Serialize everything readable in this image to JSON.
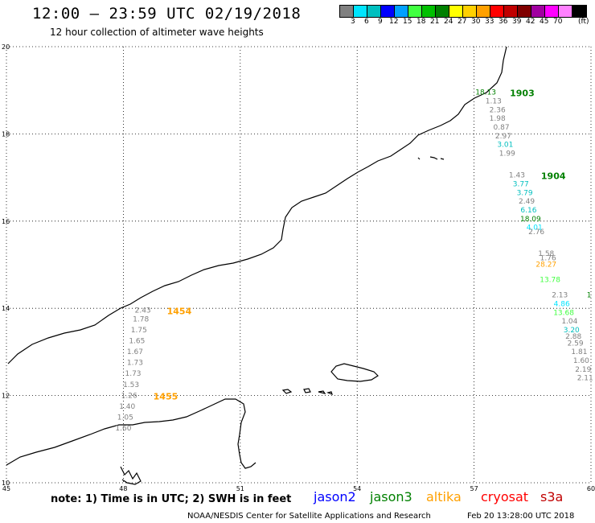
{
  "header": {
    "title": "12:00 – 23:59 UTC 02/19/2018",
    "subtitle": "12 hour collection of altimeter wave heights"
  },
  "colorbar": {
    "colors": [
      "#808080",
      "#00e5ff",
      "#00bfbf",
      "#0000ff",
      "#00a0ff",
      "#40ff40",
      "#00c000",
      "#008000",
      "#ffff00",
      "#ffd000",
      "#ffa000",
      "#ff0000",
      "#c00000",
      "#800000",
      "#a000a0",
      "#ff00ff",
      "#ff80ff",
      "#000000"
    ],
    "labels": [
      "3",
      "6",
      "9",
      "12",
      "15",
      "18",
      "21",
      "24",
      "27",
      "30",
      "33",
      "36",
      "39",
      "42",
      "45",
      "70"
    ],
    "unit": "(ft)"
  },
  "map": {
    "lon_ticks": [
      "45",
      "48",
      "51",
      "54",
      "57",
      "60"
    ],
    "lat_ticks": [
      "10",
      "12",
      "14",
      "16",
      "18",
      "20"
    ],
    "grid": true
  },
  "tracks": [
    {
      "time": "1903",
      "color": "#008000",
      "points": [
        {
          "v": "18.13",
          "c": "#008000",
          "lon": 57.3,
          "lat": 18.9
        },
        {
          "v": "1.13",
          "c": "#808080",
          "lon": 57.5,
          "lat": 18.7
        },
        {
          "v": "2.36",
          "c": "#808080",
          "lon": 57.6,
          "lat": 18.5
        },
        {
          "v": "1.98",
          "c": "#808080",
          "lon": 57.6,
          "lat": 18.3
        },
        {
          "v": "0.87",
          "c": "#808080",
          "lon": 57.7,
          "lat": 18.1
        },
        {
          "v": "2.97",
          "c": "#808080",
          "lon": 57.75,
          "lat": 17.9
        },
        {
          "v": "3.01",
          "c": "#00bfbf",
          "lon": 57.8,
          "lat": 17.7
        },
        {
          "v": "1.99",
          "c": "#808080",
          "lon": 57.85,
          "lat": 17.5
        }
      ]
    },
    {
      "time": "1904",
      "color": "#008000",
      "points": [
        {
          "v": "1.43",
          "c": "#808080",
          "lon": 58.1,
          "lat": 17.0
        },
        {
          "v": "3.77",
          "c": "#00bfbf",
          "lon": 58.2,
          "lat": 16.8
        },
        {
          "v": "3.79",
          "c": "#00bfbf",
          "lon": 58.3,
          "lat": 16.6
        },
        {
          "v": "2.49",
          "c": "#808080",
          "lon": 58.35,
          "lat": 16.4
        },
        {
          "v": "6.16",
          "c": "#00bfbf",
          "lon": 58.4,
          "lat": 16.2
        },
        {
          "v": "18.09",
          "c": "#008000",
          "lon": 58.45,
          "lat": 16.0
        },
        {
          "v": "4.01",
          "c": "#00e5ff",
          "lon": 58.55,
          "lat": 15.8
        },
        {
          "v": "2.76",
          "c": "#808080",
          "lon": 58.6,
          "lat": 15.7
        }
      ]
    },
    {
      "time": "1454",
      "color": "#ffa000",
      "points": [
        {
          "v": "2.43",
          "c": "#808080",
          "lon": 48.5,
          "lat": 13.9
        },
        {
          "v": "1.78",
          "c": "#808080",
          "lon": 48.45,
          "lat": 13.7
        },
        {
          "v": "1.75",
          "c": "#808080",
          "lon": 48.4,
          "lat": 13.45
        },
        {
          "v": "1.65",
          "c": "#808080",
          "lon": 48.35,
          "lat": 13.2
        },
        {
          "v": "1.67",
          "c": "#808080",
          "lon": 48.3,
          "lat": 12.95
        },
        {
          "v": "1.73",
          "c": "#808080",
          "lon": 48.3,
          "lat": 12.7
        },
        {
          "v": "1.73",
          "c": "#808080",
          "lon": 48.25,
          "lat": 12.45
        },
        {
          "v": "1.53",
          "c": "#808080",
          "lon": 48.2,
          "lat": 12.2
        }
      ]
    },
    {
      "time": "1455",
      "color": "#ffa000",
      "points": [
        {
          "v": "1.26",
          "c": "#808080",
          "lon": 48.15,
          "lat": 11.95
        },
        {
          "v": "1.40",
          "c": "#808080",
          "lon": 48.1,
          "lat": 11.7
        },
        {
          "v": "1.05",
          "c": "#808080",
          "lon": 48.05,
          "lat": 11.45
        },
        {
          "v": "1.60",
          "c": "#808080",
          "lon": 48.0,
          "lat": 11.2
        }
      ]
    }
  ],
  "extra_points": [
    {
      "v": "1.58",
      "c": "#808080",
      "lon": 58.85,
      "lat": 15.2
    },
    {
      "v": "1.76",
      "c": "#808080",
      "lon": 58.9,
      "lat": 15.1
    },
    {
      "v": "28.27",
      "c": "#ffa000",
      "lon": 58.85,
      "lat": 14.95
    },
    {
      "v": "13.78",
      "c": "#40ff40",
      "lon": 58.95,
      "lat": 14.6
    },
    {
      "v": "2.13",
      "c": "#808080",
      "lon": 59.2,
      "lat": 14.25
    },
    {
      "v": "4.86",
      "c": "#00e5ff",
      "lon": 59.25,
      "lat": 14.05
    },
    {
      "v": "13.68",
      "c": "#40ff40",
      "lon": 59.3,
      "lat": 13.85
    },
    {
      "v": "1.04",
      "c": "#808080",
      "lon": 59.45,
      "lat": 13.65
    },
    {
      "v": "3.20",
      "c": "#00bfbf",
      "lon": 59.5,
      "lat": 13.45
    },
    {
      "v": "2.88",
      "c": "#808080",
      "lon": 59.55,
      "lat": 13.3
    },
    {
      "v": "2.59",
      "c": "#808080",
      "lon": 59.6,
      "lat": 13.15
    },
    {
      "v": "1.81",
      "c": "#808080",
      "lon": 59.7,
      "lat": 12.95
    },
    {
      "v": "1.60",
      "c": "#808080",
      "lon": 59.75,
      "lat": 12.75
    },
    {
      "v": "2.19",
      "c": "#808080",
      "lon": 59.8,
      "lat": 12.55
    },
    {
      "v": "2.11",
      "c": "#808080",
      "lon": 59.85,
      "lat": 12.35
    },
    {
      "v": "1",
      "c": "#008000",
      "lon": 59.95,
      "lat": 14.25
    }
  ],
  "note": "note: 1) Time is in UTC; 2) SWH is in feet",
  "legend": [
    {
      "label": "jason2",
      "color": "#0000ff"
    },
    {
      "label": "jason3",
      "color": "#008000"
    },
    {
      "label": "altika",
      "color": "#ffa000"
    },
    {
      "label": "cryosat",
      "color": "#ff0000"
    },
    {
      "label": "s3a",
      "color": "#c00000"
    }
  ],
  "footer": {
    "credit": "NOAA/NESDIS Center for Satellite Applications and Research",
    "timestamp": "Feb 20 13:28:00 UTC 2018"
  }
}
